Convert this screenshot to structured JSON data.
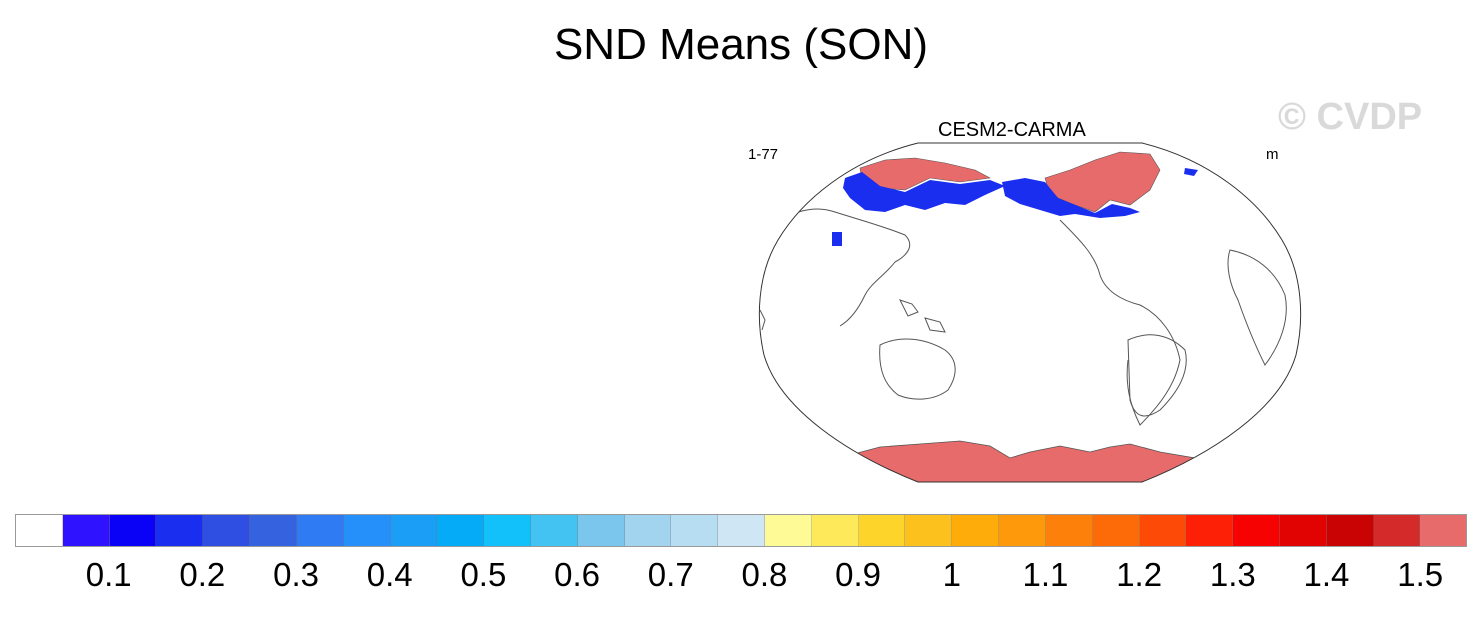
{
  "title": "SND Means (SON)",
  "watermark": "© CVDP",
  "panel": {
    "title": "CESM2-CARMA",
    "left_label": "1-77",
    "units": "m"
  },
  "map": {
    "projection": "Robinson",
    "central_longitude": 180,
    "field": "snow depth",
    "palette_positive_high": "#e86b6b",
    "palette_low": "#1f2ef0",
    "coastline_color": "#555555"
  },
  "colorbar": {
    "colors": [
      "#ffffff",
      "#2f12ff",
      "#0a02f7",
      "#1a2eef",
      "#2f4fe3",
      "#3563df",
      "#2f7bf3",
      "#2690fa",
      "#1a9ef6",
      "#06abf7",
      "#12c1fa",
      "#43c3f2",
      "#7ac6ec",
      "#a2d3ef",
      "#b7ddf2",
      "#cfe7f5",
      "#fefa96",
      "#fde95a",
      "#fdd52a",
      "#fdc11e",
      "#feac09",
      "#fd990a",
      "#fd800a",
      "#fd6b08",
      "#fd4a06",
      "#fd2006",
      "#f70202",
      "#e10202",
      "#c90303",
      "#d42a2a",
      "#e86b6b"
    ],
    "labels": [
      "0.1",
      "0.2",
      "0.3",
      "0.4",
      "0.5",
      "0.6",
      "0.7",
      "0.8",
      "0.9",
      "1",
      "1.1",
      "1.2",
      "1.3",
      "1.4",
      "1.5"
    ]
  }
}
